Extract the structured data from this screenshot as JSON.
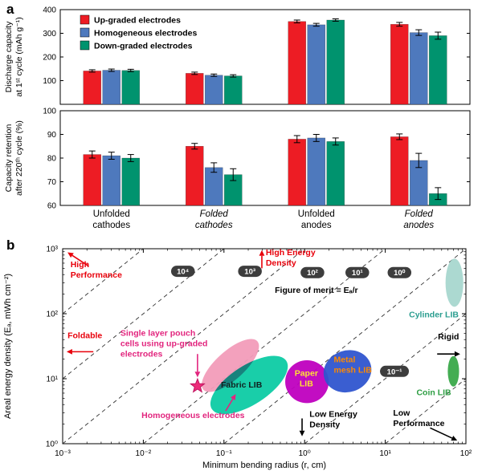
{
  "figure": {
    "panel_a_label": "a",
    "panel_b_label": "b"
  },
  "chart_data": [
    {
      "type": "bar",
      "panel": "a",
      "categories": [
        {
          "lines": [
            "Unfolded",
            "cathodes"
          ],
          "italic": false
        },
        {
          "lines": [
            "Folded",
            "cathodes"
          ],
          "italic": true
        },
        {
          "lines": [
            "Unfolded",
            "anodes"
          ],
          "italic": false
        },
        {
          "lines": [
            "Folded",
            "anodes"
          ],
          "italic": true
        }
      ],
      "subplots": [
        {
          "ylabel_lines": [
            "Discharge capacity",
            "at 1ˢᵗ cycle (mAh g⁻¹)"
          ],
          "ylim": [
            0,
            400
          ],
          "yticks": [
            100,
            200,
            300,
            400
          ],
          "series": [
            {
              "name": "Up-graded electrodes",
              "color": "#ed1c24",
              "values": [
                141,
                131,
                350,
                338
              ],
              "errors": [
                5,
                5,
                6,
                8
              ]
            },
            {
              "name": "Homogeneous electrodes",
              "color": "#4e79bd",
              "values": [
                144,
                123,
                336,
                303
              ],
              "errors": [
                5,
                5,
                6,
                12
              ]
            },
            {
              "name": "Down-graded electrodes",
              "color": "#00936e",
              "values": [
                143,
                120,
                356,
                290
              ],
              "errors": [
                5,
                5,
                5,
                15
              ]
            }
          ]
        },
        {
          "ylabel_lines": [
            "Capacity retention",
            "after 220ᵗʰ cycle (%)"
          ],
          "ylim": [
            60,
            100
          ],
          "yticks": [
            60,
            70,
            80,
            90,
            100
          ],
          "series": [
            {
              "name": "Up-graded electrodes",
              "color": "#ed1c24",
              "values": [
                81.5,
                85,
                88,
                89
              ],
              "errors": [
                1.5,
                1.2,
                1.5,
                1.2
              ]
            },
            {
              "name": "Homogeneous electrodes",
              "color": "#4e79bd",
              "values": [
                81,
                76,
                88.5,
                79
              ],
              "errors": [
                1.5,
                2,
                1.5,
                3
              ]
            },
            {
              "name": "Down-graded electrodes",
              "color": "#00936e",
              "values": [
                80,
                73,
                87,
                65
              ],
              "errors": [
                1.5,
                2.5,
                1.5,
                2.5
              ]
            }
          ]
        }
      ]
    },
    {
      "type": "scatter",
      "panel": "b",
      "xlabel": "Minimum bending radius (r, cm)",
      "ylabel": "Areal energy density (Eₐ, mWh cm⁻²)",
      "x_exp_range": [
        -3,
        2
      ],
      "y_exp_range": [
        0,
        3
      ],
      "xticks": [
        {
          "exp": -3,
          "label": "10⁻³"
        },
        {
          "exp": -2,
          "label": "10⁻²"
        },
        {
          "exp": -1,
          "label": "10⁻¹"
        },
        {
          "exp": 0,
          "label": "10⁰"
        },
        {
          "exp": 1,
          "label": "10¹"
        },
        {
          "exp": 2,
          "label": "10²"
        }
      ],
      "yticks": [
        {
          "exp": 0,
          "label": "10⁰"
        },
        {
          "exp": 1,
          "label": "10¹"
        },
        {
          "exp": 2,
          "label": "10²"
        },
        {
          "exp": 3,
          "label": "10³"
        }
      ],
      "fom_line_values": [
        100000,
        10000,
        1000,
        100,
        10,
        1,
        0.1
      ],
      "fom_label_boxes": [
        {
          "label": "10⁴",
          "r": 0.031,
          "E": 450
        },
        {
          "label": "10³",
          "r": 0.21,
          "E": 450
        },
        {
          "label": "10²",
          "r": 1.25,
          "E": 430
        },
        {
          "label": "10¹",
          "r": 4.5,
          "E": 430
        },
        {
          "label": "10⁰",
          "r": 15,
          "E": 430
        },
        {
          "label": "10⁻¹",
          "r": 13,
          "E": 13
        }
      ],
      "regions": [
        {
          "name": "pouch-cells",
          "r": 0.12,
          "E": 16,
          "rx_dec": 0.45,
          "ry_dec": 0.22,
          "rot": -42,
          "fill": "#f29cb9",
          "opacity": 0.95
        },
        {
          "name": "fabric-lib",
          "r": 0.205,
          "E": 8,
          "rx_dec": 0.55,
          "ry_dec": 0.3,
          "rot": -33,
          "fill": "#00c9a0",
          "opacity": 0.9,
          "blend": "multiply"
        },
        {
          "name": "paper-lib",
          "r": 1.07,
          "E": 9,
          "rx_dec": 0.27,
          "ry_dec": 0.33,
          "rot": 0,
          "fill": "#bf00bf",
          "opacity": 0.95
        },
        {
          "name": "metal-mesh-lib",
          "r": 3.4,
          "E": 13,
          "rx_dec": 0.3,
          "ry_dec": 0.32,
          "rot": -18,
          "fill": "#2f55cf",
          "opacity": 0.95
        },
        {
          "name": "cylinder-lib",
          "r": 72,
          "E": 300,
          "rx_dec": 0.11,
          "ry_dec": 0.37,
          "rot": 0,
          "fill": "#9ed2c9",
          "opacity": 0.85
        },
        {
          "name": "coin-lib",
          "r": 70,
          "E": 13,
          "rx_dec": 0.07,
          "ry_dec": 0.235,
          "rot": 0,
          "fill": "#3aa94a",
          "opacity": 0.95
        }
      ],
      "region_labels": [
        {
          "name": "fabric-lib-label",
          "lines": [
            "Fabric LIB"
          ],
          "r": 0.165,
          "E": 7.3,
          "color": "#102020",
          "anchor": "middle",
          "bold": true,
          "size": 10.5
        },
        {
          "name": "paper-lib-label",
          "lines": [
            "Paper",
            "LIB"
          ],
          "r": 1.05,
          "E": 11,
          "color": "#ffe135",
          "anchor": "middle",
          "bold": true,
          "size": 10.5
        },
        {
          "name": "metal-mesh-lib-label",
          "lines": [
            "Metal",
            "mesh LIB"
          ],
          "r": 2.3,
          "E": 18,
          "color": "#ff8a00",
          "anchor": "start",
          "bold": true,
          "size": 10.5
        },
        {
          "name": "cylinder-lib-label",
          "lines": [
            "Cylinder LIB"
          ],
          "r": 40,
          "E": 88,
          "color": "#2a9d8f",
          "anchor": "middle",
          "bold": true,
          "size": 10.5
        },
        {
          "name": "coin-lib-label",
          "lines": [
            "Coin LIB"
          ],
          "r": 40,
          "E": 5.6,
          "color": "#2e9e43",
          "anchor": "middle",
          "bold": true,
          "size": 10.5
        }
      ],
      "annotations": [
        {
          "name": "high-performance-label",
          "lines": [
            "High",
            "Performance"
          ],
          "r": 0.00125,
          "E": 520,
          "color": "#e8000b",
          "anchor": "start",
          "bold": true,
          "size": 10.5
        },
        {
          "name": "high-energy-density-label",
          "lines": [
            "High Energy",
            "Density"
          ],
          "r": 0.33,
          "E": 800,
          "color": "#e8000b",
          "anchor": "start",
          "bold": true,
          "size": 10.5
        },
        {
          "name": "foldable-label",
          "lines": [
            "Foldable"
          ],
          "r": 0.00115,
          "E": 42,
          "color": "#e8000b",
          "anchor": "start",
          "bold": true,
          "size": 10.5
        },
        {
          "name": "figure-of-merit-label",
          "lines": [
            "Figure of merit = Eₐ/r"
          ],
          "r": 1.4,
          "E": 210,
          "color": "#000000",
          "anchor": "middle",
          "bold": true,
          "size": 10.5
        },
        {
          "name": "pouch-cells-label",
          "lines": [
            "Single layer pouch",
            "cells using up-graded",
            "electrodes"
          ],
          "r": 0.0052,
          "E": 46,
          "color": "#e2257e",
          "anchor": "start",
          "bold": true,
          "size": 10.5
        },
        {
          "name": "homogeneous-label",
          "lines": [
            "Homogeneous electrodes"
          ],
          "r": 0.0095,
          "E": 2.5,
          "color": "#e2257e",
          "anchor": "start",
          "bold": true,
          "size": 10.5
        },
        {
          "name": "low-energy-density-label",
          "lines": [
            "Low Energy",
            "Density"
          ],
          "r": 1.15,
          "E": 2.6,
          "color": "#000000",
          "anchor": "start",
          "bold": true,
          "size": 10.5
        },
        {
          "name": "low-performance-label",
          "lines": [
            "Low",
            "Performance"
          ],
          "r": 12.5,
          "E": 2.7,
          "color": "#000000",
          "anchor": "start",
          "bold": true,
          "size": 10.5
        },
        {
          "name": "rigid-label",
          "lines": [
            "Rigid"
          ],
          "r": 45,
          "E": 40,
          "color": "#000000",
          "anchor": "start",
          "bold": true,
          "size": 10.5
        }
      ],
      "arrows": [
        {
          "name": "high-performance-arrow",
          "color": "#e8000b",
          "from": {
            "r": 0.0021,
            "E": 540
          },
          "to": {
            "r": 0.00115,
            "E": 880
          }
        },
        {
          "name": "high-energy-density-arrow",
          "color": "#e8000b",
          "from": {
            "r": 0.295,
            "E": 500
          },
          "to": {
            "r": 0.295,
            "E": 950
          }
        },
        {
          "name": "foldable-arrow",
          "color": "#e8000b",
          "from": {
            "r": 0.0024,
            "E": 26
          },
          "to": {
            "r": 0.00112,
            "E": 26
          }
        },
        {
          "name": "pouch-cells-arrow",
          "color": "#e2257e",
          "from": {
            "r": 0.047,
            "E": 24
          },
          "to": {
            "r": 0.047,
            "E": 10.5
          }
        },
        {
          "name": "homogeneous-arrow",
          "color": "#e2257e",
          "from": {
            "r": 0.105,
            "E": 3.2
          },
          "to": {
            "r": 0.14,
            "E": 5.8
          }
        },
        {
          "name": "low-energy-density-arrow",
          "color": "#000000",
          "from": {
            "r": 0.93,
            "E": 2.45
          },
          "to": {
            "r": 0.93,
            "E": 1.3
          }
        },
        {
          "name": "low-performance-arrow",
          "color": "#000000",
          "from": {
            "r": 36,
            "E": 1.75
          },
          "to": {
            "r": 78,
            "E": 1.12
          }
        },
        {
          "name": "rigid-arrow",
          "color": "#000000",
          "from": {
            "r": 44,
            "E": 24
          },
          "to": {
            "r": 85,
            "E": 24
          }
        }
      ],
      "star": {
        "name": "up-graded-pouch-point",
        "r": 0.047,
        "E": 7.7,
        "color": "#ec2d7a"
      }
    }
  ]
}
